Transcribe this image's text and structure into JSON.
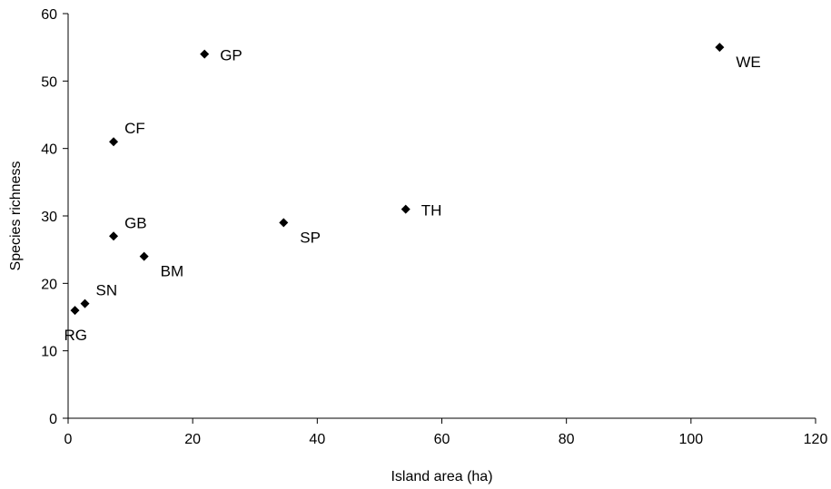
{
  "chart_data": {
    "type": "scatter",
    "title": "",
    "xlabel": "Island area (ha)",
    "ylabel": "Species richness",
    "xlim": [
      0,
      120
    ],
    "ylim": [
      0,
      60
    ],
    "x_ticks": [
      0,
      20,
      40,
      60,
      80,
      100,
      120
    ],
    "y_ticks": [
      0,
      10,
      20,
      30,
      40,
      50,
      60
    ],
    "grid": false,
    "legend": "none",
    "marker": "diamond",
    "marker_color": "#000000",
    "points": [
      {
        "label": "RG",
        "x": 1.1,
        "y": 16,
        "label_position": "below"
      },
      {
        "label": "SN",
        "x": 2.7,
        "y": 17,
        "label_position": "above-right"
      },
      {
        "label": "GB",
        "x": 7.3,
        "y": 27,
        "label_position": "above-right"
      },
      {
        "label": "CF",
        "x": 7.3,
        "y": 41,
        "label_position": "above-right"
      },
      {
        "label": "BM",
        "x": 12.2,
        "y": 24,
        "label_position": "below-right"
      },
      {
        "label": "GP",
        "x": 21.9,
        "y": 54,
        "label_position": "right"
      },
      {
        "label": "SP",
        "x": 34.6,
        "y": 29,
        "label_position": "below-right"
      },
      {
        "label": "TH",
        "x": 54.2,
        "y": 31,
        "label_position": "right"
      },
      {
        "label": "WE",
        "x": 104.6,
        "y": 55,
        "label_position": "below-right"
      }
    ]
  }
}
